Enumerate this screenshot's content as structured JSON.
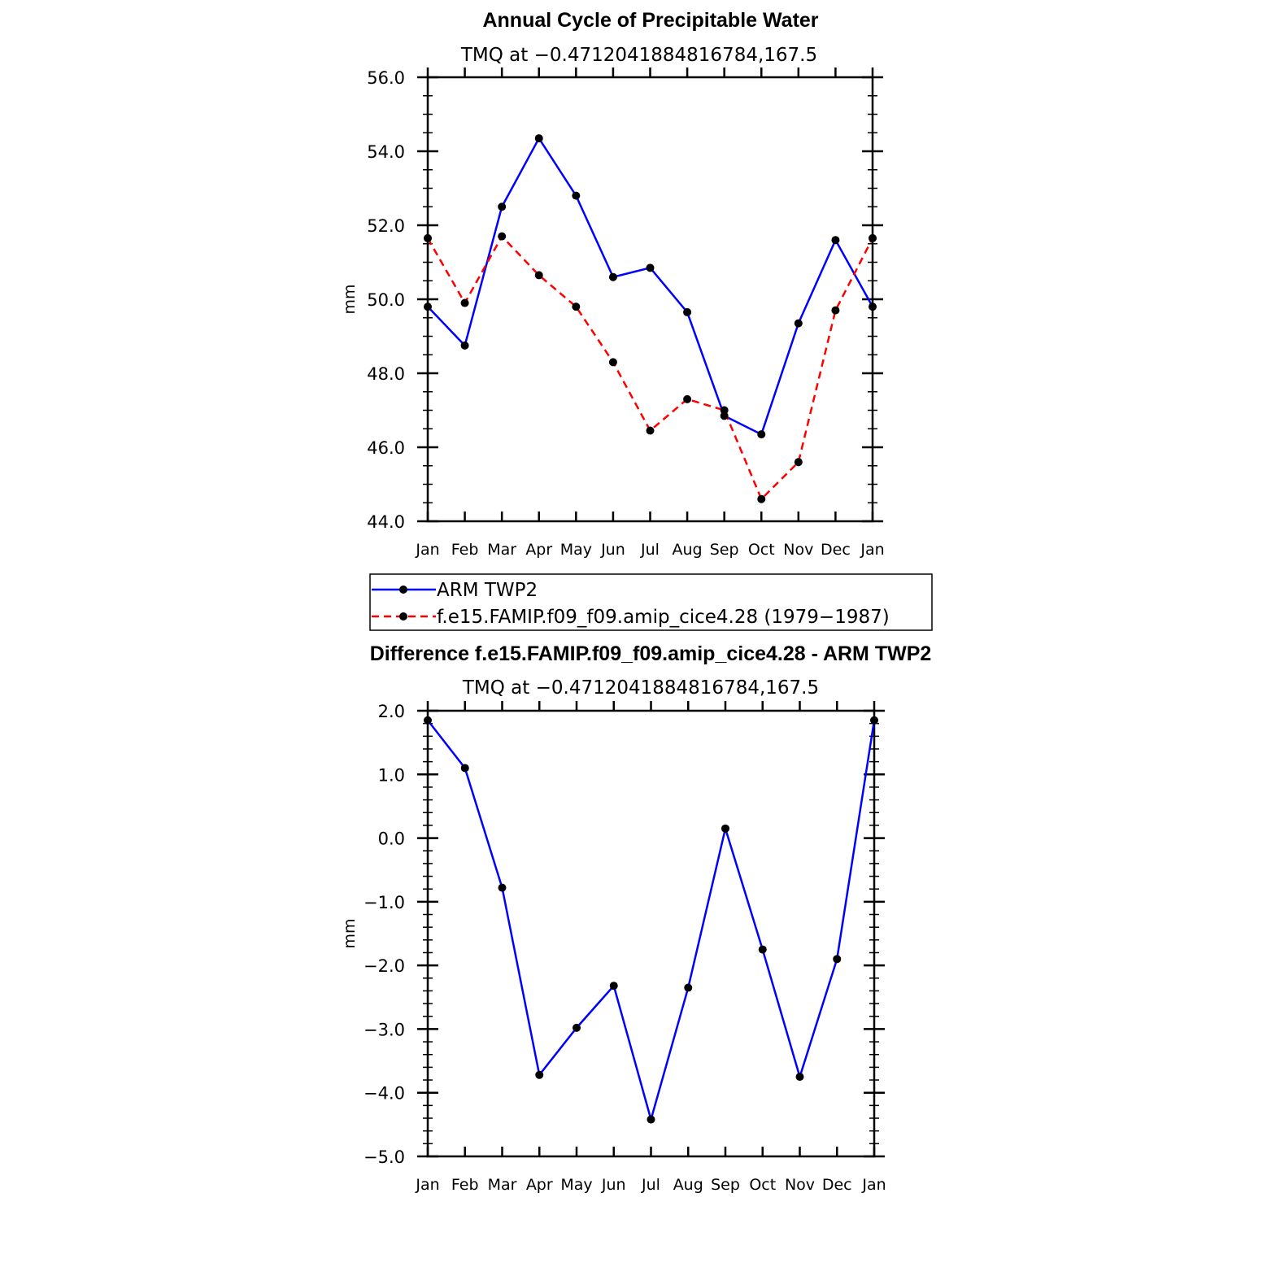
{
  "chart_data": [
    {
      "type": "line",
      "title": "Annual Cycle of Precipitable Water",
      "subtitle": "TMQ at −0.4712041884816784,167.5",
      "ylabel": "mm",
      "xlabel": "",
      "ylim": [
        44.0,
        56.0
      ],
      "y_ticks": [
        "44.0",
        "46.0",
        "48.0",
        "50.0",
        "52.0",
        "54.0",
        "56.0"
      ],
      "categories": [
        "Jan",
        "Feb",
        "Mar",
        "Apr",
        "May",
        "Jun",
        "Jul",
        "Aug",
        "Sep",
        "Oct",
        "Nov",
        "Dec",
        "Jan"
      ],
      "series": [
        {
          "name": "ARM  TWP2",
          "color": "#0000ff",
          "dash": "solid",
          "values": [
            49.8,
            48.75,
            52.5,
            54.35,
            52.8,
            50.6,
            50.85,
            49.65,
            46.85,
            46.35,
            49.35,
            51.6,
            49.8
          ]
        },
        {
          "name": "f.e15.FAMIP.f09_f09.amip_cice4.28 (1979−1987)",
          "color": "#ff0000",
          "dash": "dashed",
          "values": [
            51.65,
            49.9,
            51.7,
            50.65,
            49.8,
            48.3,
            46.45,
            47.3,
            47.0,
            44.6,
            45.6,
            49.7,
            51.65
          ]
        }
      ],
      "legend": "below"
    },
    {
      "type": "line",
      "title": "Difference f.e15.FAMIP.f09_f09.amip_cice4.28 - ARM TWP2",
      "subtitle": "TMQ at −0.4712041884816784,167.5",
      "ylabel": "mm",
      "xlabel": "",
      "ylim": [
        -5.0,
        2.0
      ],
      "y_ticks": [
        "−5.0",
        "−4.0",
        "−3.0",
        "−2.0",
        "−1.0",
        "0.0",
        "1.0",
        "2.0"
      ],
      "categories": [
        "Jan",
        "Feb",
        "Mar",
        "Apr",
        "May",
        "Jun",
        "Jul",
        "Aug",
        "Sep",
        "Oct",
        "Nov",
        "Dec",
        "Jan"
      ],
      "series": [
        {
          "name": "Difference",
          "color": "#0000ff",
          "dash": "solid",
          "values": [
            1.85,
            1.1,
            -0.78,
            -3.72,
            -2.98,
            -2.32,
            -4.42,
            -2.35,
            0.15,
            -1.75,
            -3.75,
            -1.9,
            1.85
          ]
        }
      ]
    }
  ]
}
